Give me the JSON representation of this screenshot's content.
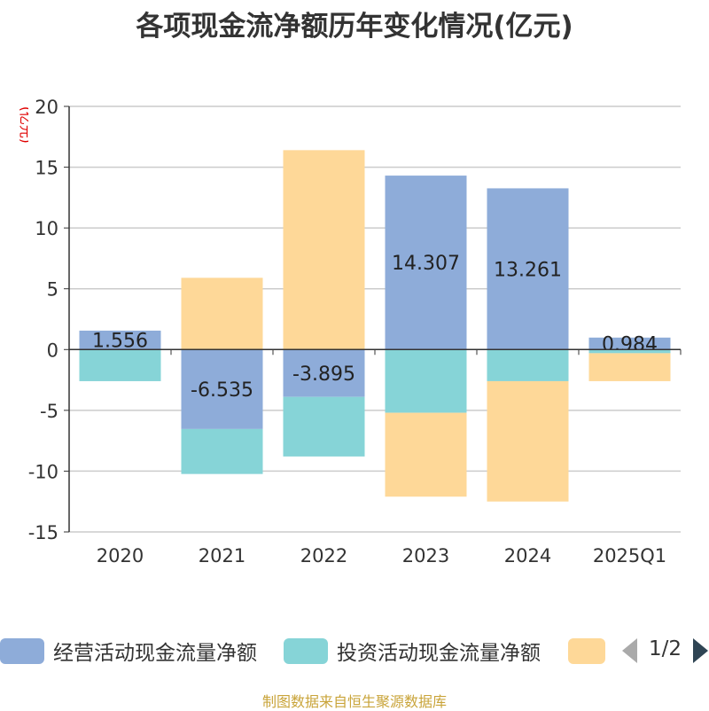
{
  "title": "各项现金流净额历年变化情况(亿元)",
  "unit_label": "(亿元)",
  "source": "制图数据来自恒生聚源数据库",
  "legend": {
    "items": [
      {
        "label": "经营活动现金流量净额",
        "color": "#8eacd9"
      },
      {
        "label": "投资活动现金流量净额",
        "color": "#86d4d7"
      },
      {
        "label": "",
        "color": "#fed898"
      }
    ],
    "page": "1/2"
  },
  "chart_data": {
    "type": "bar",
    "stacked": true,
    "categories": [
      "2020",
      "2021",
      "2022",
      "2023",
      "2024",
      "2025Q1"
    ],
    "ylim": [
      -15,
      20
    ],
    "yticks": [
      -15,
      -10,
      -5,
      0,
      5,
      10,
      15,
      20
    ],
    "grid": true,
    "legend_position": "bottom",
    "series": [
      {
        "name": "经营活动现金流量净额",
        "color": "#8eacd9",
        "values": [
          1.556,
          -6.535,
          -3.895,
          14.307,
          13.261,
          0.984
        ],
        "labels": [
          "1.556",
          "-6.535",
          "-3.895",
          "14.307",
          "13.261",
          "0.984"
        ]
      },
      {
        "name": "投资活动现金流量净额",
        "color": "#86d4d7",
        "values": [
          -2.6,
          -3.7,
          -4.9,
          -5.2,
          -2.6,
          -0.3
        ]
      },
      {
        "color": "#fed898",
        "values": [
          0,
          5.9,
          16.4,
          -6.9,
          -9.9,
          -2.3
        ]
      }
    ]
  }
}
